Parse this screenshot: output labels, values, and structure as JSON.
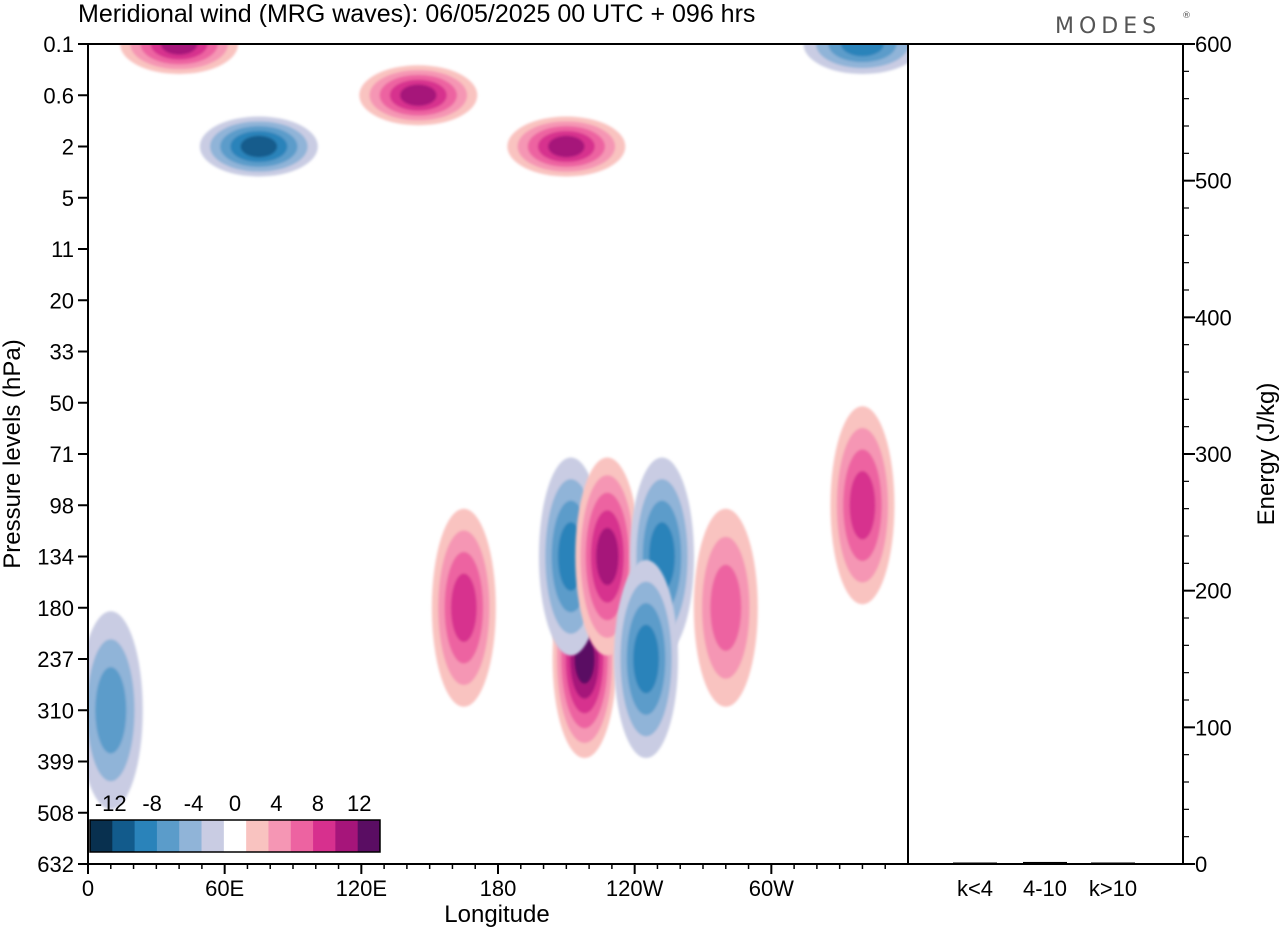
{
  "title": "Meridional wind (MRG waves):  06/05/2025  00 UTC  + 096 hrs",
  "logo": "MODES",
  "chart_data": [
    {
      "type": "heatmap",
      "title": "Meridional wind (MRG waves):  06/05/2025  00 UTC  + 096 hrs",
      "xlabel": "Longitude",
      "ylabel": "Pressure levels (hPa)",
      "x_ticks": [
        "0",
        "60E",
        "120E",
        "180",
        "120W",
        "60W"
      ],
      "x_tick_values": [
        0,
        60,
        120,
        180,
        240,
        300
      ],
      "xlim": [
        0,
        360
      ],
      "y_ticks": [
        "0.1",
        "0.6",
        "2",
        "5",
        "11",
        "20",
        "33",
        "50",
        "71",
        "98",
        "134",
        "180",
        "237",
        "310",
        "399",
        "508",
        "632"
      ],
      "y_scale": "pressure levels (evenly spaced, increasing downward)",
      "colorbar": {
        "labels": [
          "-12",
          "-8",
          "-4",
          "0",
          "4",
          "8",
          "12"
        ],
        "label_values": [
          -12,
          -8,
          -4,
          0,
          4,
          8,
          12
        ],
        "levels": [
          -14,
          -12,
          -10,
          -8,
          -6,
          -4,
          -2,
          2,
          4,
          6,
          8,
          10,
          12,
          14
        ],
        "colors": [
          "#08304f",
          "#125b8c",
          "#2a83ba",
          "#5b9cca",
          "#90b4d8",
          "#c9cce3",
          "#ffffff",
          "#f9c3c0",
          "#f596b4",
          "#ed63a1",
          "#d7308e",
          "#a6157a",
          "#5a0d63"
        ]
      },
      "features": [
        {
          "lon": 218,
          "level": "237",
          "value": 14
        },
        {
          "lon": 212,
          "level": "134",
          "value": -8
        },
        {
          "lon": 228,
          "level": "134",
          "value": 10
        },
        {
          "lon": 252,
          "level": "134",
          "value": -8
        },
        {
          "lon": 245,
          "level": "237",
          "value": -8
        },
        {
          "lon": 165,
          "level": "180",
          "value": 8
        },
        {
          "lon": 280,
          "level": "180",
          "value": 6
        },
        {
          "lon": 340,
          "level": "98",
          "value": 8
        },
        {
          "lon": 10,
          "level": "310",
          "value": -6
        },
        {
          "lon": 40,
          "level": "0.1",
          "value": 10
        },
        {
          "lon": 145,
          "level": "0.6",
          "value": 10
        },
        {
          "lon": 210,
          "level": "2",
          "value": 10
        },
        {
          "lon": 75,
          "level": "2",
          "value": -10
        },
        {
          "lon": 340,
          "level": "0.1",
          "value": -8
        }
      ]
    },
    {
      "type": "bar",
      "categories": [
        "k<4",
        "4-10",
        "k>10"
      ],
      "values": [
        0.3,
        1.5,
        0.3
      ],
      "ylabel": "Energy (J/kg)",
      "ylim": [
        0,
        600
      ],
      "y_ticks": [
        "0",
        "100",
        "200",
        "300",
        "400",
        "500",
        "600"
      ]
    }
  ]
}
